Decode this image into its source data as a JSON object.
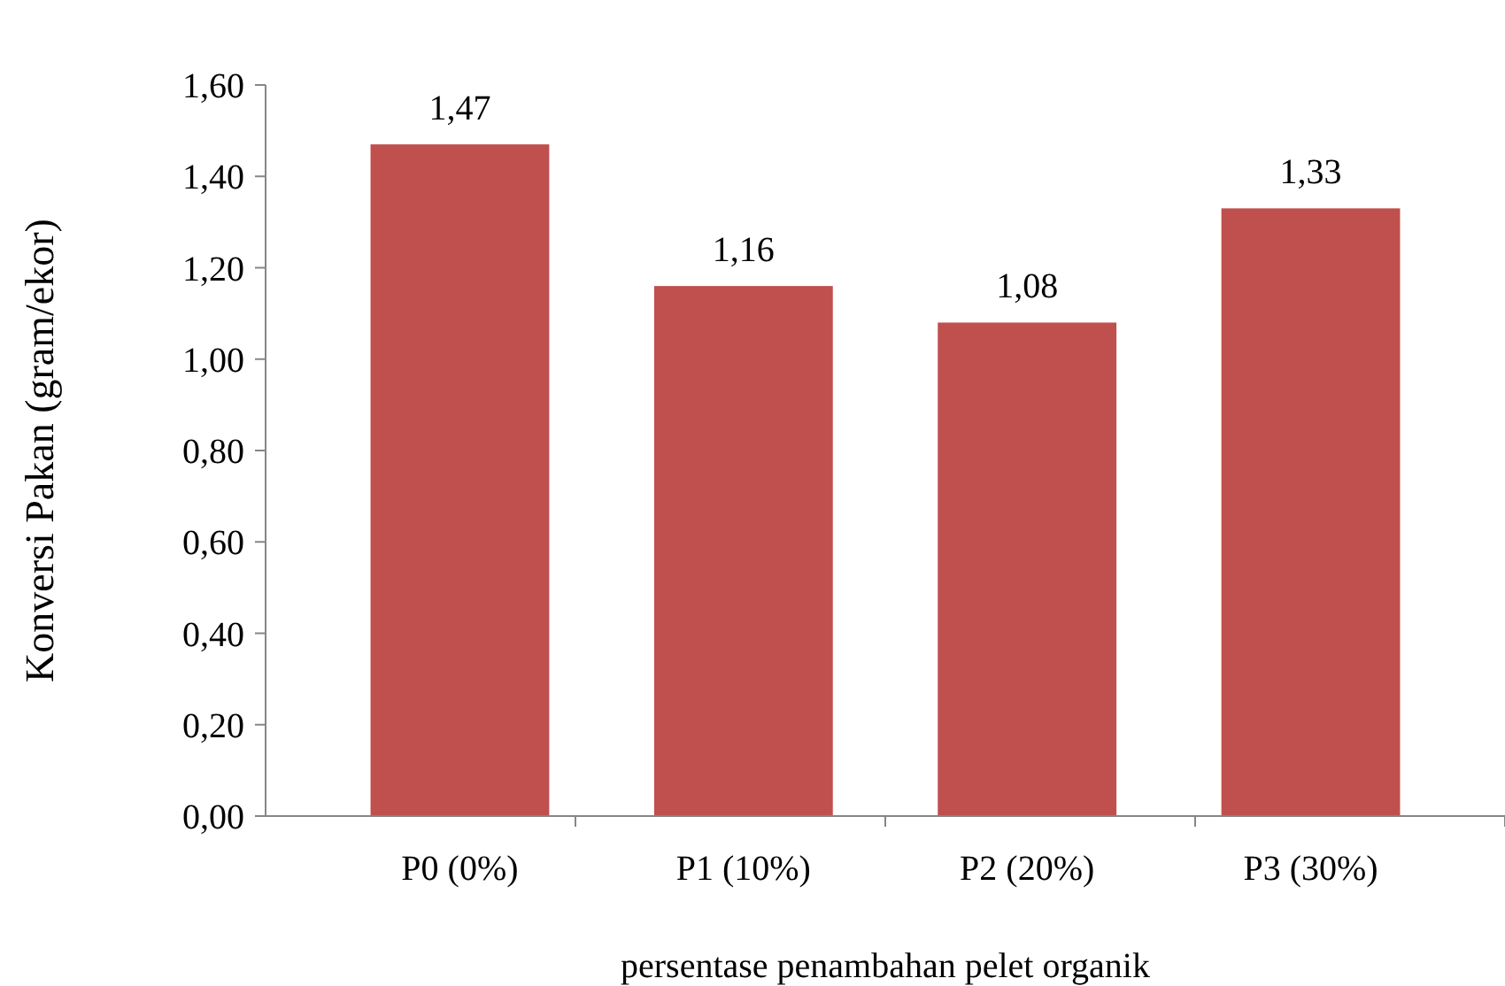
{
  "chart_data": {
    "type": "bar",
    "xlabel": "persentase penambahan pelet organik",
    "ylabel": "Konversi Pakan (gram/ekor)",
    "categories": [
      "P0 (0%)",
      "P1 (10%)",
      "P2 (20%)",
      "P3 (30%)"
    ],
    "values": [
      1.47,
      1.16,
      1.08,
      1.33
    ],
    "value_labels": [
      "1,47",
      "1,16",
      "1,08",
      "1,33"
    ],
    "color": "#c0504d",
    "ylim": [
      0,
      1.6
    ],
    "yticks": [
      {
        "value": 0,
        "label": "0,00"
      },
      {
        "value": 0.2,
        "label": "0,20"
      },
      {
        "value": 0.4,
        "label": "0,40"
      },
      {
        "value": 0.6,
        "label": "0,60"
      },
      {
        "value": 0.8,
        "label": "0,80"
      },
      {
        "value": 1,
        "label": "1,00"
      },
      {
        "value": 1.2,
        "label": "1,20"
      },
      {
        "value": 1.4,
        "label": "1,40"
      },
      {
        "value": 1.6,
        "label": "1,60"
      }
    ],
    "grid": false
  }
}
